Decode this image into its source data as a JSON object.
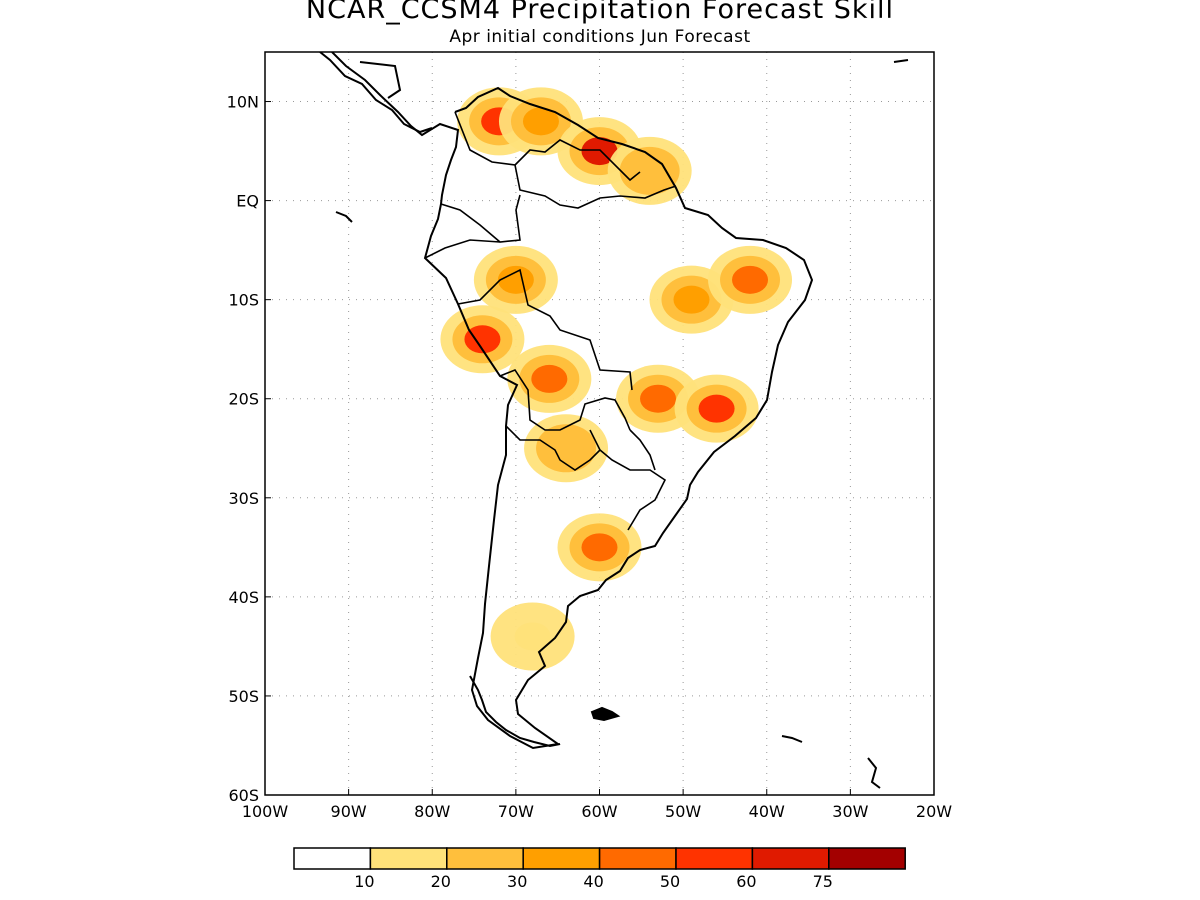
{
  "title": "NCAR_CCSM4 Precipitation Forecast Skill",
  "subtitle": "Apr initial conditions  Jun Forecast",
  "map": {
    "region": "South America",
    "extent": {
      "lon": [
        -100,
        -20
      ],
      "lat": [
        -60,
        15
      ]
    },
    "gridlines": "dotted",
    "lon_ticks": [
      "100W",
      "90W",
      "80W",
      "70W",
      "60W",
      "50W",
      "40W",
      "30W",
      "20W"
    ],
    "lat_ticks": [
      "10N",
      "EQ",
      "10S",
      "20S",
      "30S",
      "40S",
      "50S",
      "60S"
    ]
  },
  "legend": {
    "labels": [
      "10",
      "20",
      "30",
      "40",
      "50",
      "60",
      "75"
    ],
    "colors": [
      "#ffffff",
      "#ffe27a",
      "#ffbf3c",
      "#ff9f00",
      "#ff6a00",
      "#ff3300",
      "#e01a00",
      "#a30000"
    ]
  },
  "chart_data": {
    "type": "heatmap",
    "variable": "Precipitation forecast skill",
    "levels": [
      10,
      20,
      30,
      40,
      50,
      60,
      75
    ],
    "regions": [
      {
        "lon": -72,
        "lat": 8,
        "value": 55
      },
      {
        "lon": -67,
        "lat": 8,
        "value": 30
      },
      {
        "lon": -60,
        "lat": 5,
        "value": 60
      },
      {
        "lon": -54,
        "lat": 3,
        "value": 20
      },
      {
        "lon": -70,
        "lat": -8,
        "value": 35
      },
      {
        "lon": -74,
        "lat": -14,
        "value": 50
      },
      {
        "lon": -66,
        "lat": -18,
        "value": 40
      },
      {
        "lon": -53,
        "lat": -20,
        "value": 45
      },
      {
        "lon": -46,
        "lat": -21,
        "value": 55
      },
      {
        "lon": -49,
        "lat": -10,
        "value": 30
      },
      {
        "lon": -42,
        "lat": -8,
        "value": 45
      },
      {
        "lon": -60,
        "lat": -35,
        "value": 45
      },
      {
        "lon": -64,
        "lat": -25,
        "value": 20
      },
      {
        "lon": -68,
        "lat": -44,
        "value": 10
      }
    ]
  }
}
